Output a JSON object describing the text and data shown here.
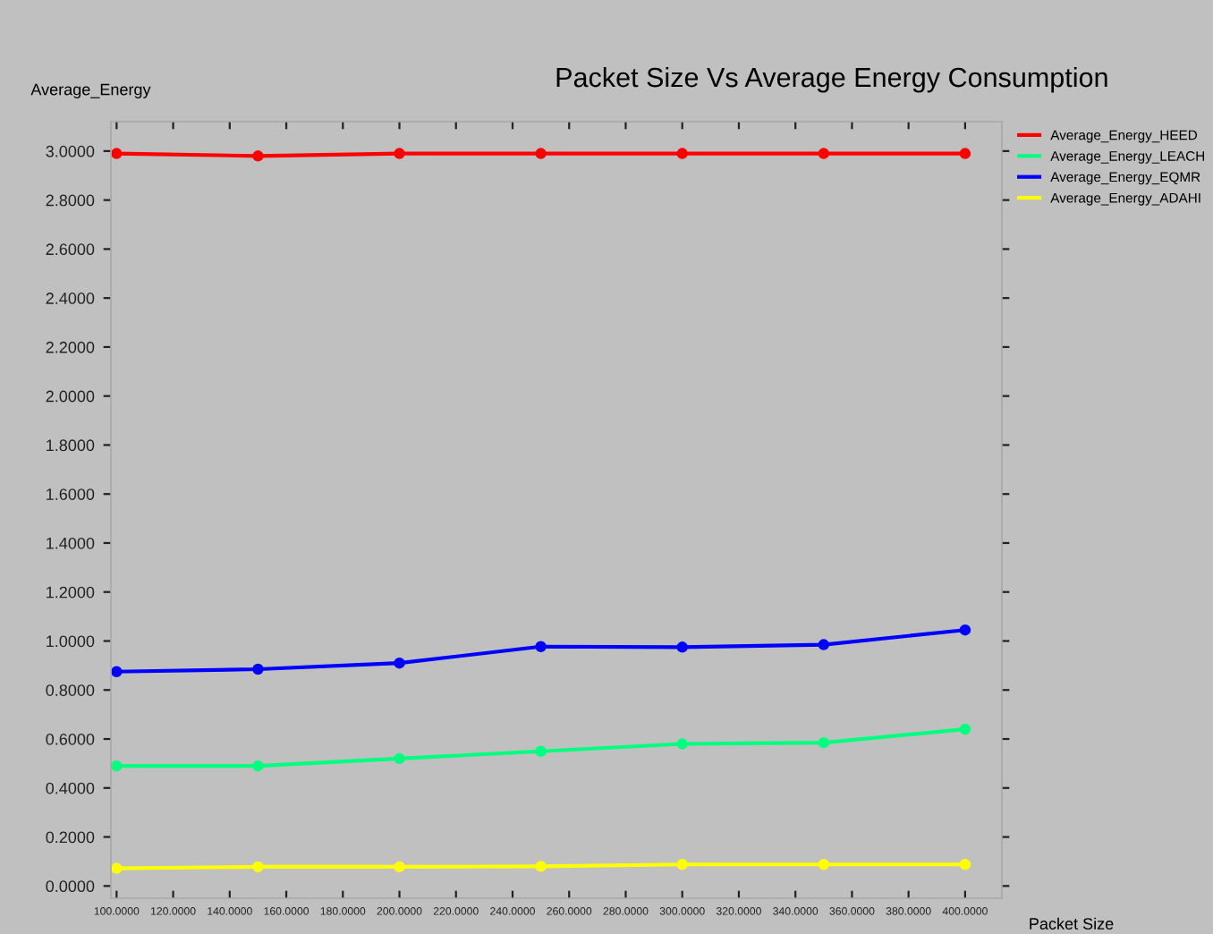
{
  "chart_data": {
    "type": "line",
    "title": "Packet Size Vs Average Energy Consumption",
    "xlabel": "Packet Size",
    "ylabel": "Average_Energy",
    "x": [
      100,
      150,
      200,
      250,
      300,
      350,
      400
    ],
    "series": [
      {
        "name": "Average_Energy_HEED",
        "color": "#ff0000",
        "values": [
          2.99,
          2.98,
          2.99,
          2.99,
          2.99,
          2.99,
          2.99
        ]
      },
      {
        "name": "Average_Energy_LEACH",
        "color": "#00ff7f",
        "values": [
          0.49,
          0.49,
          0.52,
          0.55,
          0.58,
          0.585,
          0.64
        ]
      },
      {
        "name": "Average_Energy_EQMR",
        "color": "#0000ff",
        "values": [
          0.875,
          0.885,
          0.91,
          0.977,
          0.975,
          0.985,
          1.045
        ]
      },
      {
        "name": "Average_Energy_ADAHI",
        "color": "#ffff00",
        "values": [
          0.072,
          0.078,
          0.078,
          0.08,
          0.088,
          0.088,
          0.088
        ]
      }
    ],
    "xlim": [
      98,
      413
    ],
    "ylim": [
      -0.05,
      3.12
    ],
    "xticks": [
      {
        "value": 100,
        "label": "100.0000"
      },
      {
        "value": 120,
        "label": "120.0000"
      },
      {
        "value": 140,
        "label": "140.0000"
      },
      {
        "value": 160,
        "label": "160.0000"
      },
      {
        "value": 180,
        "label": "180.0000"
      },
      {
        "value": 200,
        "label": "200.0000"
      },
      {
        "value": 220,
        "label": "220.0000"
      },
      {
        "value": 240,
        "label": "240.0000"
      },
      {
        "value": 260,
        "label": "260.0000"
      },
      {
        "value": 280,
        "label": "280.0000"
      },
      {
        "value": 300,
        "label": "300.0000"
      },
      {
        "value": 320,
        "label": "320.0000"
      },
      {
        "value": 340,
        "label": "340.0000"
      },
      {
        "value": 360,
        "label": "360.0000"
      },
      {
        "value": 380,
        "label": "380.0000"
      },
      {
        "value": 400,
        "label": "400.0000"
      }
    ],
    "yticks": [
      {
        "value": 0,
        "label": "0.0000"
      },
      {
        "value": 0.2,
        "label": "0.2000"
      },
      {
        "value": 0.4,
        "label": "0.4000"
      },
      {
        "value": 0.6,
        "label": "0.6000"
      },
      {
        "value": 0.8,
        "label": "0.8000"
      },
      {
        "value": 1.0,
        "label": "1.0000"
      },
      {
        "value": 1.2,
        "label": "1.2000"
      },
      {
        "value": 1.4,
        "label": "1.4000"
      },
      {
        "value": 1.6,
        "label": "1.6000"
      },
      {
        "value": 1.8,
        "label": "1.8000"
      },
      {
        "value": 2.0,
        "label": "2.0000"
      },
      {
        "value": 2.2,
        "label": "2.2000"
      },
      {
        "value": 2.4,
        "label": "2.4000"
      },
      {
        "value": 2.6,
        "label": "2.6000"
      },
      {
        "value": 2.8,
        "label": "2.8000"
      },
      {
        "value": 3.0,
        "label": "3.0000"
      }
    ],
    "grid": false,
    "legend": "right",
    "marker": "circle",
    "line_style": "solid"
  }
}
